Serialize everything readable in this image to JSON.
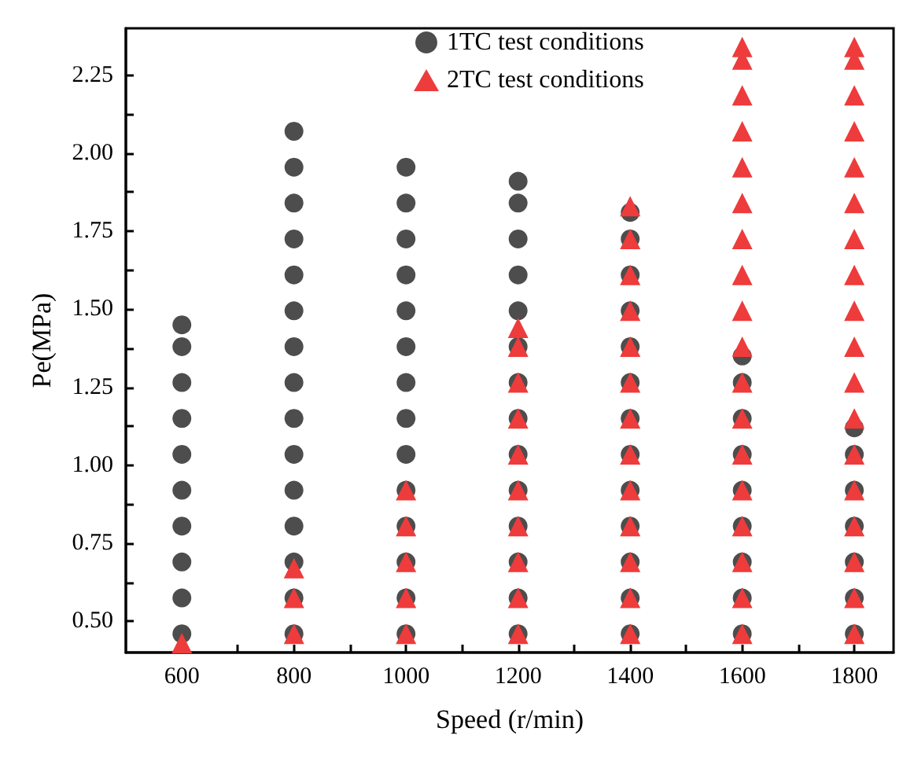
{
  "chart_data": {
    "type": "scatter",
    "xlabel": "Speed (r/min)",
    "ylabel": "Pe(MPa)",
    "xlim": [
      500,
      1870
    ],
    "ylim": [
      0.4,
      2.4
    ],
    "xticks": [
      600,
      {
        "value": 700,
        "label": null
      },
      800,
      {
        "value": 900,
        "label": null
      },
      1000,
      {
        "value": 1100,
        "label": null
      },
      1200,
      {
        "value": 1300,
        "label": null
      },
      1400,
      {
        "value": 1500,
        "label": null
      },
      1600,
      {
        "value": 1700,
        "label": null
      },
      1800
    ],
    "yticks": [
      {
        "value": 0.5,
        "label": "0.50"
      },
      {
        "value": 0.625,
        "label": null
      },
      {
        "value": 0.75,
        "label": "0.75"
      },
      {
        "value": 0.875,
        "label": null
      },
      {
        "value": 1.0,
        "label": "1.00"
      },
      {
        "value": 1.125,
        "label": null
      },
      {
        "value": 1.25,
        "label": "1.25"
      },
      {
        "value": 1.375,
        "label": null
      },
      {
        "value": 1.5,
        "label": "1.50"
      },
      {
        "value": 1.625,
        "label": null
      },
      {
        "value": 1.75,
        "label": "1.75"
      },
      {
        "value": 1.875,
        "label": null
      },
      {
        "value": 2.0,
        "label": "2.00"
      },
      {
        "value": 2.125,
        "label": null
      },
      {
        "value": 2.25,
        "label": "2.25"
      }
    ],
    "grid": false,
    "legend": "top",
    "series": [
      {
        "name": "1TC test conditions",
        "color": "#4d4d4d",
        "marker": "circle",
        "x": [
          600,
          600,
          600,
          600,
          600,
          600,
          600,
          600,
          600,
          600,
          800,
          800,
          800,
          800,
          800,
          800,
          800,
          800,
          800,
          800,
          800,
          800,
          800,
          800,
          800,
          1000,
          1000,
          1000,
          1000,
          1000,
          1000,
          1000,
          1000,
          1000,
          1000,
          1000,
          1000,
          1000,
          1000,
          1200,
          1200,
          1200,
          1200,
          1200,
          1200,
          1200,
          1200,
          1200,
          1200,
          1200,
          1200,
          1200,
          1200,
          1400,
          1400,
          1400,
          1400,
          1400,
          1400,
          1400,
          1400,
          1400,
          1400,
          1400,
          1400,
          1400,
          1600,
          1600,
          1600,
          1600,
          1600,
          1600,
          1600,
          1600,
          1600,
          1800,
          1800,
          1800,
          1800,
          1800,
          1800,
          1800
        ],
        "values": [
          0.46,
          0.575,
          0.69,
          0.805,
          0.92,
          1.035,
          1.15,
          1.265,
          1.38,
          1.45,
          0.46,
          0.575,
          0.69,
          0.805,
          0.92,
          1.035,
          1.15,
          1.265,
          1.38,
          1.495,
          1.61,
          1.725,
          1.84,
          1.955,
          2.07,
          0.46,
          0.575,
          0.69,
          0.805,
          0.92,
          1.035,
          1.15,
          1.265,
          1.38,
          1.495,
          1.61,
          1.725,
          1.84,
          1.955,
          0.46,
          0.575,
          0.69,
          0.805,
          0.92,
          1.035,
          1.15,
          1.265,
          1.38,
          1.495,
          1.61,
          1.725,
          1.84,
          1.91,
          0.46,
          0.575,
          0.69,
          0.805,
          0.92,
          1.035,
          1.15,
          1.265,
          1.38,
          1.495,
          1.61,
          1.725,
          1.81,
          0.46,
          0.575,
          0.69,
          0.805,
          0.92,
          1.035,
          1.15,
          1.265,
          1.35,
          0.46,
          0.575,
          0.69,
          0.805,
          0.92,
          1.035,
          1.12
        ]
      },
      {
        "name": "2TC test conditions",
        "color": "#ee3b3b",
        "marker": "triangle",
        "x": [
          600,
          800,
          800,
          800,
          1000,
          1000,
          1000,
          1000,
          1000,
          1200,
          1200,
          1200,
          1200,
          1200,
          1200,
          1200,
          1200,
          1200,
          1200,
          1400,
          1400,
          1400,
          1400,
          1400,
          1400,
          1400,
          1400,
          1400,
          1400,
          1400,
          1400,
          1400,
          1600,
          1600,
          1600,
          1600,
          1600,
          1600,
          1600,
          1600,
          1600,
          1600,
          1600,
          1600,
          1600,
          1600,
          1600,
          1600,
          1600,
          1600,
          1800,
          1800,
          1800,
          1800,
          1800,
          1800,
          1800,
          1800,
          1800,
          1800,
          1800,
          1800,
          1800,
          1800,
          1800,
          1800,
          1800,
          1800
        ],
        "values": [
          0.43,
          0.46,
          0.575,
          0.67,
          0.46,
          0.575,
          0.69,
          0.805,
          0.92,
          0.46,
          0.575,
          0.69,
          0.805,
          0.92,
          1.035,
          1.15,
          1.265,
          1.38,
          1.44,
          0.46,
          0.575,
          0.69,
          0.805,
          0.92,
          1.035,
          1.15,
          1.265,
          1.38,
          1.495,
          1.61,
          1.725,
          1.83,
          0.46,
          0.575,
          0.69,
          0.805,
          0.92,
          1.035,
          1.15,
          1.265,
          1.38,
          1.495,
          1.61,
          1.725,
          1.84,
          1.955,
          2.07,
          2.185,
          2.3,
          2.34,
          0.46,
          0.575,
          0.69,
          0.805,
          0.92,
          1.035,
          1.15,
          1.265,
          1.38,
          1.495,
          1.61,
          1.725,
          1.84,
          1.955,
          2.07,
          2.185,
          2.3,
          2.34
        ]
      }
    ]
  }
}
